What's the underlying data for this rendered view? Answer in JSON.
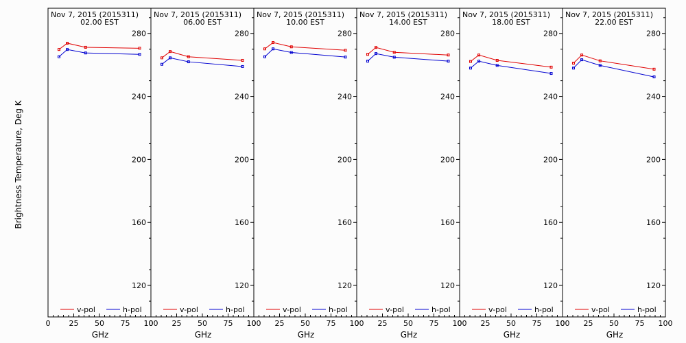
{
  "ylabel": "Brightness Temperature, Deg K",
  "xlabel": "GHz",
  "colors": {
    "vpol": "#e00000",
    "hpol": "#0000d0",
    "axis": "#000000"
  },
  "chart_data": [
    {
      "type": "line",
      "title": "Nov  7, 2015 (2015311)",
      "subtitle": "02.00 EST",
      "x": [
        10.65,
        18.7,
        36.5,
        89.0
      ],
      "series": [
        {
          "name": "v-pol",
          "values": [
            269.8,
            273.8,
            271.2,
            270.6
          ]
        },
        {
          "name": "h-pol",
          "values": [
            265.2,
            269.8,
            267.6,
            266.7
          ]
        }
      ],
      "xlim": [
        0,
        100
      ],
      "ylim": [
        100,
        296
      ],
      "xticks": [
        0,
        25,
        50,
        75
      ],
      "yticks": [
        120,
        160,
        200,
        240,
        280
      ],
      "xlabel": "GHz",
      "legend": [
        "v-pol",
        "h-pol"
      ]
    },
    {
      "type": "line",
      "title": "Nov  7, 2015 (2015311)",
      "subtitle": "06.00 EST",
      "x": [
        10.65,
        18.7,
        36.5,
        89.0
      ],
      "series": [
        {
          "name": "v-pol",
          "values": [
            264.5,
            268.5,
            265.2,
            262.9
          ]
        },
        {
          "name": "h-pol",
          "values": [
            260.4,
            264.5,
            262.0,
            259.0
          ]
        }
      ],
      "xlim": [
        0,
        100
      ],
      "ylim": [
        100,
        296
      ],
      "xticks": [
        0,
        25,
        50,
        75
      ],
      "yticks": [
        120,
        160,
        200,
        240,
        280
      ],
      "xlabel": "GHz",
      "legend": [
        "v-pol",
        "h-pol"
      ]
    },
    {
      "type": "line",
      "title": "Nov  7, 2015 (2015311)",
      "subtitle": "10.00 EST",
      "x": [
        10.65,
        18.7,
        36.5,
        89.0
      ],
      "series": [
        {
          "name": "v-pol",
          "values": [
            270.2,
            274.2,
            271.5,
            269.3
          ]
        },
        {
          "name": "h-pol",
          "values": [
            265.2,
            270.2,
            267.9,
            265.0
          ]
        }
      ],
      "xlim": [
        0,
        100
      ],
      "ylim": [
        100,
        296
      ],
      "xticks": [
        0,
        25,
        50,
        75
      ],
      "yticks": [
        120,
        160,
        200,
        240,
        280
      ],
      "xlabel": "GHz",
      "legend": [
        "v-pol",
        "h-pol"
      ]
    },
    {
      "type": "line",
      "title": "Nov  7, 2015 (2015311)",
      "subtitle": "14.00 EST",
      "x": [
        10.65,
        18.7,
        36.5,
        89.0
      ],
      "series": [
        {
          "name": "v-pol",
          "values": [
            266.7,
            271.1,
            268.0,
            266.3
          ]
        },
        {
          "name": "h-pol",
          "values": [
            262.4,
            267.2,
            264.9,
            262.4
          ]
        }
      ],
      "xlim": [
        0,
        100
      ],
      "ylim": [
        100,
        296
      ],
      "xticks": [
        0,
        25,
        50,
        75
      ],
      "yticks": [
        120,
        160,
        200,
        240,
        280
      ],
      "xlabel": "GHz",
      "legend": [
        "v-pol",
        "h-pol"
      ]
    },
    {
      "type": "line",
      "title": "Nov  7, 2015 (2015311)",
      "subtitle": "18.00 EST",
      "x": [
        10.65,
        18.7,
        36.5,
        89.0
      ],
      "series": [
        {
          "name": "v-pol",
          "values": [
            262.2,
            266.3,
            262.9,
            258.6
          ]
        },
        {
          "name": "h-pol",
          "values": [
            258.0,
            262.4,
            259.7,
            254.6
          ]
        }
      ],
      "xlim": [
        0,
        100
      ],
      "ylim": [
        100,
        296
      ],
      "xticks": [
        0,
        25,
        50,
        75
      ],
      "yticks": [
        120,
        160,
        200,
        240,
        280
      ],
      "xlabel": "GHz",
      "legend": [
        "v-pol",
        "h-pol"
      ]
    },
    {
      "type": "line",
      "title": "Nov  7, 2015 (2015311)",
      "subtitle": "22.00 EST",
      "x": [
        10.65,
        18.7,
        36.5,
        89.0
      ],
      "series": [
        {
          "name": "v-pol",
          "values": [
            261.1,
            266.3,
            262.6,
            257.3
          ]
        },
        {
          "name": "h-pol",
          "values": [
            258.0,
            263.3,
            259.7,
            252.4
          ]
        }
      ],
      "xlim": [
        0,
        100
      ],
      "ylim": [
        100,
        296
      ],
      "xticks": [
        0,
        25,
        50,
        75
      ],
      "yticks": [
        120,
        160,
        200,
        240,
        280
      ],
      "xlabel": "GHz",
      "legend": [
        "v-pol",
        "h-pol"
      ]
    }
  ]
}
